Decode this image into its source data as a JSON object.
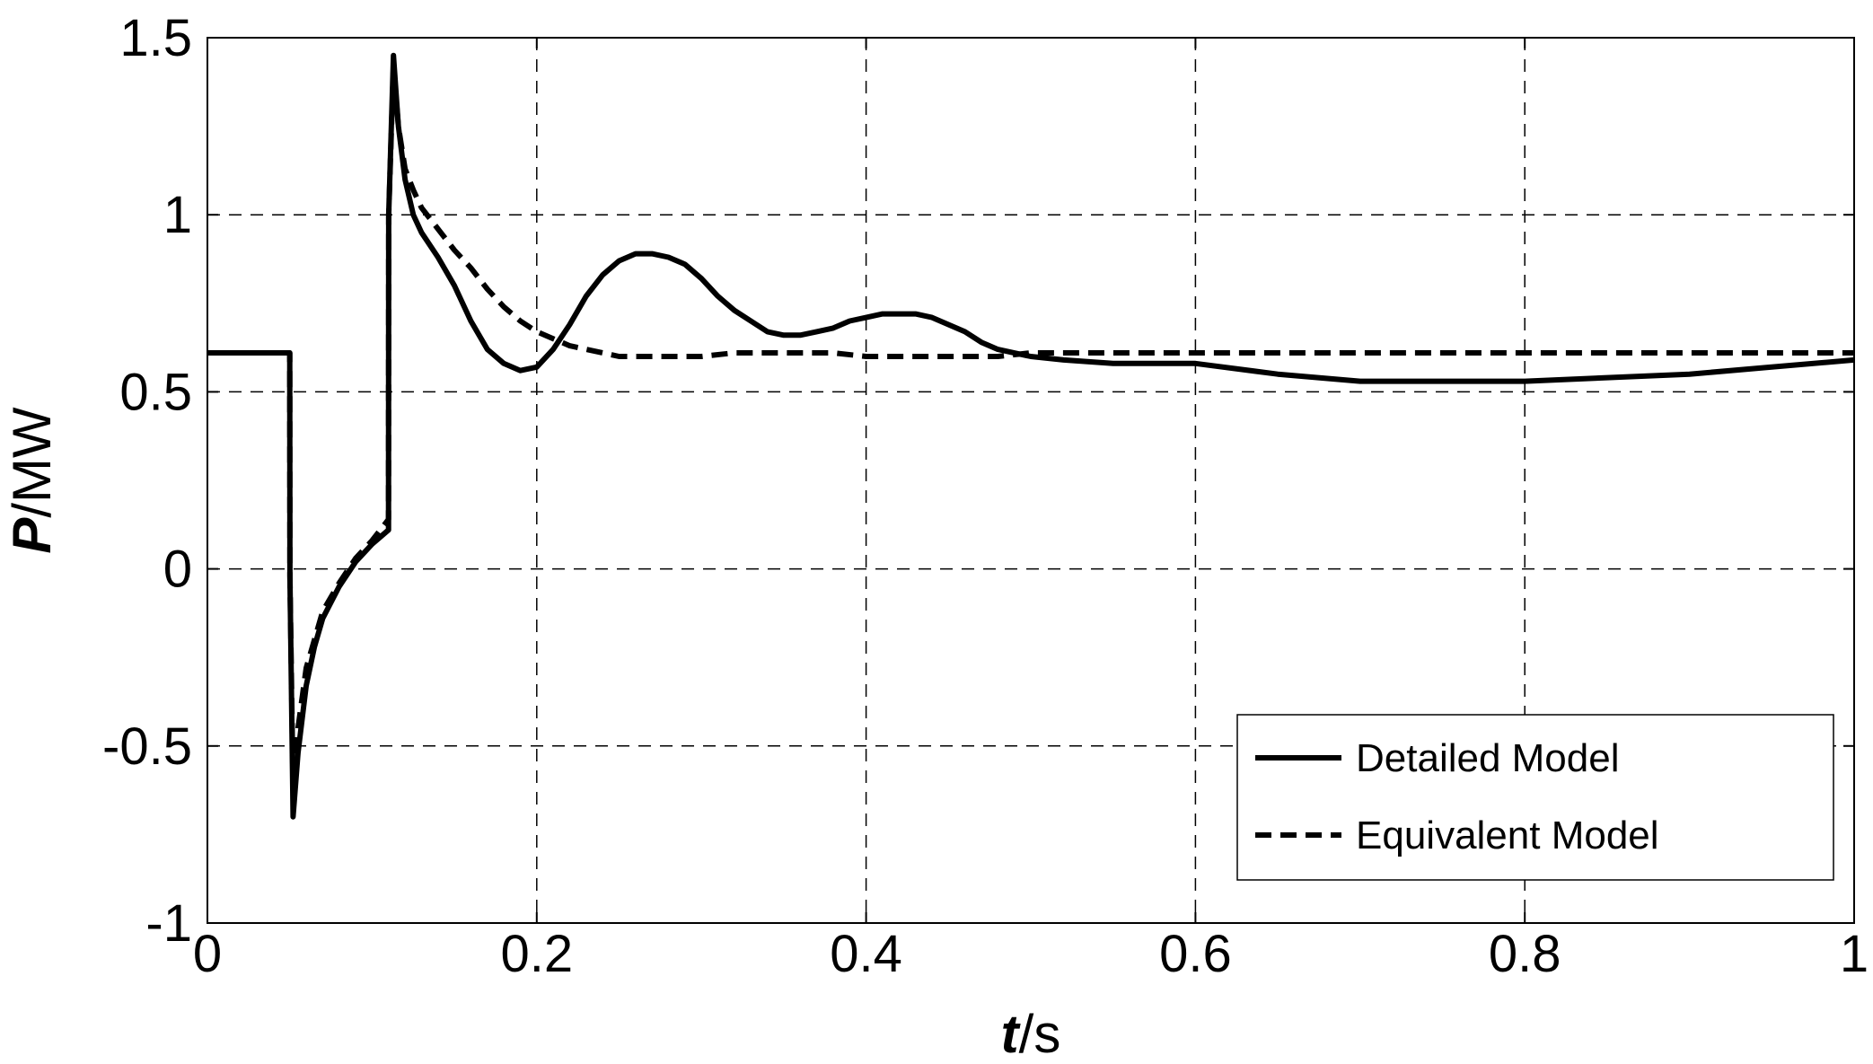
{
  "chart_data": {
    "type": "line",
    "title": "",
    "xlabel": {
      "var": "t",
      "unit": "/s"
    },
    "ylabel": {
      "var": "P",
      "unit": "/MW"
    },
    "xlim": [
      0,
      1
    ],
    "ylim": [
      -1,
      1.5
    ],
    "x_ticks": [
      0,
      0.2,
      0.4,
      0.6,
      0.8,
      1
    ],
    "x_tick_labels": [
      "0",
      "0.2",
      "0.4",
      "0.6",
      "0.8",
      "1"
    ],
    "y_ticks": [
      -1,
      -0.5,
      0,
      0.5,
      1,
      1.5
    ],
    "y_tick_labels": [
      "-1",
      "-0.5",
      "0",
      "0.5",
      "1",
      "1.5"
    ],
    "grid": true,
    "grid_style": "dashed",
    "legend_position": "bottom-right",
    "series": [
      {
        "name": "Detailed Model",
        "style": "solid",
        "color": "#000000",
        "x": [
          0,
          0.05,
          0.0501,
          0.052,
          0.055,
          0.06,
          0.065,
          0.07,
          0.08,
          0.09,
          0.1,
          0.11,
          0.1101,
          0.113,
          0.116,
          0.12,
          0.125,
          0.13,
          0.14,
          0.15,
          0.16,
          0.17,
          0.18,
          0.19,
          0.2,
          0.21,
          0.22,
          0.23,
          0.24,
          0.25,
          0.26,
          0.27,
          0.28,
          0.29,
          0.3,
          0.31,
          0.32,
          0.33,
          0.34,
          0.35,
          0.36,
          0.37,
          0.38,
          0.39,
          0.4,
          0.41,
          0.42,
          0.43,
          0.44,
          0.45,
          0.46,
          0.47,
          0.48,
          0.5,
          0.52,
          0.55,
          0.58,
          0.6,
          0.65,
          0.7,
          0.75,
          0.8,
          0.85,
          0.9,
          0.95,
          1.0
        ],
        "y": [
          0.61,
          0.61,
          -0.02,
          -0.7,
          -0.52,
          -0.33,
          -0.22,
          -0.14,
          -0.05,
          0.02,
          0.07,
          0.11,
          1.0,
          1.45,
          1.25,
          1.1,
          1.0,
          0.95,
          0.88,
          0.8,
          0.7,
          0.62,
          0.58,
          0.56,
          0.57,
          0.62,
          0.69,
          0.77,
          0.83,
          0.87,
          0.89,
          0.89,
          0.88,
          0.86,
          0.82,
          0.77,
          0.73,
          0.7,
          0.67,
          0.66,
          0.66,
          0.67,
          0.68,
          0.7,
          0.71,
          0.72,
          0.72,
          0.72,
          0.71,
          0.69,
          0.67,
          0.64,
          0.62,
          0.6,
          0.59,
          0.58,
          0.58,
          0.58,
          0.55,
          0.53,
          0.53,
          0.53,
          0.54,
          0.55,
          0.57,
          0.59
        ]
      },
      {
        "name": "Equivalent Model",
        "style": "dashed",
        "color": "#000000",
        "x": [
          0,
          0.05,
          0.0501,
          0.052,
          0.055,
          0.06,
          0.065,
          0.07,
          0.08,
          0.09,
          0.1,
          0.11,
          0.1101,
          0.113,
          0.116,
          0.12,
          0.125,
          0.13,
          0.14,
          0.15,
          0.16,
          0.17,
          0.18,
          0.19,
          0.2,
          0.21,
          0.22,
          0.23,
          0.24,
          0.25,
          0.26,
          0.27,
          0.28,
          0.3,
          0.32,
          0.34,
          0.36,
          0.38,
          0.4,
          0.42,
          0.44,
          0.46,
          0.48,
          0.5,
          0.55,
          0.6,
          0.7,
          0.8,
          0.9,
          1.0
        ],
        "y": [
          0.61,
          0.61,
          -0.02,
          -0.62,
          -0.45,
          -0.28,
          -0.2,
          -0.12,
          -0.04,
          0.03,
          0.08,
          0.14,
          1.0,
          1.42,
          1.25,
          1.13,
          1.07,
          1.02,
          0.96,
          0.9,
          0.85,
          0.79,
          0.74,
          0.7,
          0.67,
          0.65,
          0.63,
          0.62,
          0.61,
          0.6,
          0.6,
          0.6,
          0.6,
          0.6,
          0.61,
          0.61,
          0.61,
          0.61,
          0.6,
          0.6,
          0.6,
          0.6,
          0.6,
          0.61,
          0.61,
          0.61,
          0.61,
          0.61,
          0.61,
          0.61
        ]
      }
    ]
  }
}
